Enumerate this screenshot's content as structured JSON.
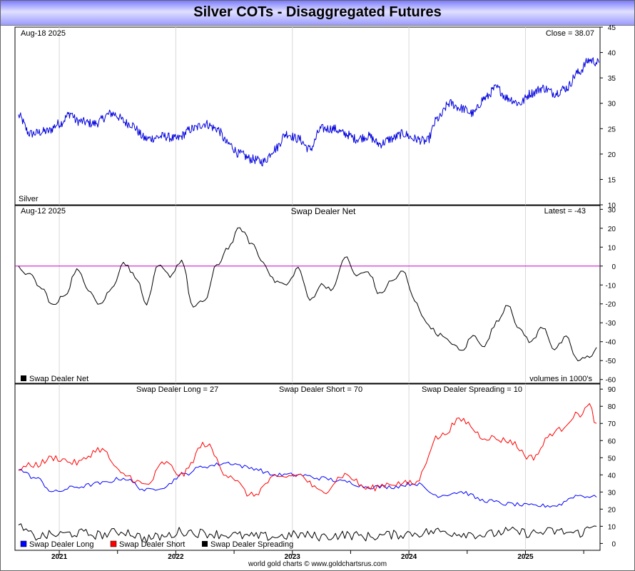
{
  "title": "Silver COTs - Disaggregated Futures",
  "footer": "world gold charts © www.goldchartsrus.com",
  "x_axis": {
    "years": [
      "2021",
      "2022",
      "2023",
      "2024",
      "2025"
    ]
  },
  "colors": {
    "price": "#0000dd",
    "net": "#000000",
    "zero": "#cc00cc",
    "long": "#0000ff",
    "short": "#ff0000",
    "spreading": "#000000"
  },
  "panels": {
    "price": {
      "date_label": "Aug-18  2025",
      "value_label": "Close = 38.07",
      "series_label": "Silver"
    },
    "net": {
      "date_label": "Aug-12  2025",
      "title": "Swap Dealer Net",
      "value_label": "Latest = -43",
      "legend": "Swap Dealer Net",
      "units_note": "volumes in 1000's"
    },
    "positions": {
      "long_label": "Swap Dealer Long = 27",
      "short_label": "Swap Dealer Short = 70",
      "spread_label": "Swap Dealer Spreading = 10",
      "legend": [
        "Swap Dealer Long",
        "Swap Dealer Short",
        "Swap Dealer Spreading"
      ]
    }
  },
  "chart_data": [
    {
      "type": "line",
      "name": "Silver",
      "x_start": "2020-09",
      "x_end": "2025-08",
      "ylim": [
        10,
        45
      ],
      "yticks": [
        10,
        15,
        20,
        25,
        30,
        35,
        40,
        45
      ],
      "anchors": [
        [
          2020.65,
          27.5
        ],
        [
          2020.75,
          24
        ],
        [
          2020.9,
          24.5
        ],
        [
          2021.0,
          26
        ],
        [
          2021.1,
          28
        ],
        [
          2021.15,
          26.5
        ],
        [
          2021.3,
          26
        ],
        [
          2021.45,
          28
        ],
        [
          2021.6,
          26
        ],
        [
          2021.75,
          23
        ],
        [
          2021.9,
          23.5
        ],
        [
          2022.0,
          23
        ],
        [
          2022.15,
          25
        ],
        [
          2022.25,
          26
        ],
        [
          2022.35,
          25
        ],
        [
          2022.45,
          22
        ],
        [
          2022.55,
          20
        ],
        [
          2022.65,
          19
        ],
        [
          2022.75,
          18.5
        ],
        [
          2022.85,
          21
        ],
        [
          2022.95,
          24
        ],
        [
          2023.05,
          23
        ],
        [
          2023.15,
          21
        ],
        [
          2023.25,
          25
        ],
        [
          2023.35,
          25
        ],
        [
          2023.45,
          24
        ],
        [
          2023.55,
          23
        ],
        [
          2023.65,
          23.5
        ],
        [
          2023.75,
          22
        ],
        [
          2023.85,
          23
        ],
        [
          2023.95,
          24
        ],
        [
          2024.05,
          23
        ],
        [
          2024.15,
          22.5
        ],
        [
          2024.25,
          27
        ],
        [
          2024.35,
          30
        ],
        [
          2024.45,
          29
        ],
        [
          2024.55,
          28
        ],
        [
          2024.65,
          31
        ],
        [
          2024.75,
          33
        ],
        [
          2024.85,
          31
        ],
        [
          2024.95,
          30
        ],
        [
          2025.05,
          32
        ],
        [
          2025.15,
          33
        ],
        [
          2025.25,
          32
        ],
        [
          2025.35,
          33
        ],
        [
          2025.45,
          36
        ],
        [
          2025.55,
          38.5
        ],
        [
          2025.63,
          38
        ]
      ],
      "last_close": 38.07
    },
    {
      "type": "line",
      "name": "Swap Dealer Net",
      "x_start": "2020-09",
      "x_end": "2025-08",
      "ylim": [
        -62,
        32
      ],
      "yticks": [
        -60,
        -50,
        -40,
        -30,
        -20,
        -10,
        0,
        10,
        20,
        30
      ],
      "hline": 0,
      "anchors": [
        [
          2020.65,
          -1
        ],
        [
          2020.75,
          -5
        ],
        [
          2020.85,
          -12
        ],
        [
          2020.95,
          -21
        ],
        [
          2021.05,
          -15
        ],
        [
          2021.15,
          -2
        ],
        [
          2021.25,
          -12
        ],
        [
          2021.35,
          -20
        ],
        [
          2021.45,
          -12
        ],
        [
          2021.55,
          2
        ],
        [
          2021.65,
          -5
        ],
        [
          2021.75,
          -20
        ],
        [
          2021.85,
          0
        ],
        [
          2021.95,
          -5
        ],
        [
          2022.05,
          3
        ],
        [
          2022.15,
          -22
        ],
        [
          2022.25,
          -18
        ],
        [
          2022.35,
          0
        ],
        [
          2022.45,
          10
        ],
        [
          2022.55,
          20
        ],
        [
          2022.65,
          12
        ],
        [
          2022.75,
          2
        ],
        [
          2022.85,
          -8
        ],
        [
          2022.95,
          -10
        ],
        [
          2023.05,
          -1
        ],
        [
          2023.15,
          -18
        ],
        [
          2023.25,
          -10
        ],
        [
          2023.35,
          -12
        ],
        [
          2023.45,
          5
        ],
        [
          2023.55,
          -5
        ],
        [
          2023.65,
          -3
        ],
        [
          2023.75,
          -15
        ],
        [
          2023.85,
          -8
        ],
        [
          2023.95,
          -3
        ],
        [
          2024.05,
          -18
        ],
        [
          2024.15,
          -30
        ],
        [
          2024.25,
          -36
        ],
        [
          2024.35,
          -40
        ],
        [
          2024.45,
          -45
        ],
        [
          2024.55,
          -37
        ],
        [
          2024.65,
          -42
        ],
        [
          2024.75,
          -30
        ],
        [
          2024.85,
          -20
        ],
        [
          2024.95,
          -34
        ],
        [
          2025.05,
          -40
        ],
        [
          2025.15,
          -32
        ],
        [
          2025.25,
          -44
        ],
        [
          2025.35,
          -38
        ],
        [
          2025.45,
          -50
        ],
        [
          2025.55,
          -48
        ],
        [
          2025.61,
          -43
        ]
      ],
      "latest": -43
    },
    {
      "type": "line",
      "name": "Swap Dealer Positions",
      "x_start": "2020-09",
      "x_end": "2025-08",
      "ylim": [
        -4,
        93
      ],
      "yticks": [
        0,
        10,
        20,
        30,
        40,
        50,
        60,
        70,
        80,
        90
      ],
      "series": [
        {
          "name": "Swap Dealer Long",
          "latest": 27,
          "anchors": [
            [
              2020.65,
              43
            ],
            [
              2020.8,
              38
            ],
            [
              2020.95,
              30
            ],
            [
              2021.15,
              33
            ],
            [
              2021.35,
              35
            ],
            [
              2021.55,
              38
            ],
            [
              2021.75,
              31
            ],
            [
              2021.9,
              33
            ],
            [
              2022.05,
              40
            ],
            [
              2022.25,
              45
            ],
            [
              2022.45,
              47
            ],
            [
              2022.65,
              44
            ],
            [
              2022.85,
              40
            ],
            [
              2023.05,
              40
            ],
            [
              2023.25,
              38
            ],
            [
              2023.45,
              36
            ],
            [
              2023.65,
              33
            ],
            [
              2023.85,
              33
            ],
            [
              2024.05,
              35
            ],
            [
              2024.25,
              28
            ],
            [
              2024.45,
              30
            ],
            [
              2024.65,
              25
            ],
            [
              2024.85,
              23
            ],
            [
              2025.05,
              22
            ],
            [
              2025.25,
              22
            ],
            [
              2025.45,
              28
            ],
            [
              2025.61,
              27
            ]
          ]
        },
        {
          "name": "Swap Dealer Short",
          "latest": 70,
          "anchors": [
            [
              2020.65,
              44
            ],
            [
              2020.8,
              46
            ],
            [
              2020.95,
              50
            ],
            [
              2021.15,
              47
            ],
            [
              2021.35,
              55
            ],
            [
              2021.55,
              40
            ],
            [
              2021.75,
              34
            ],
            [
              2021.9,
              47
            ],
            [
              2022.05,
              40
            ],
            [
              2022.25,
              58
            ],
            [
              2022.45,
              40
            ],
            [
              2022.65,
              28
            ],
            [
              2022.85,
              38
            ],
            [
              2023.05,
              40
            ],
            [
              2023.25,
              30
            ],
            [
              2023.45,
              40
            ],
            [
              2023.65,
              32
            ],
            [
              2023.85,
              35
            ],
            [
              2024.05,
              35
            ],
            [
              2024.25,
              62
            ],
            [
              2024.45,
              72
            ],
            [
              2024.65,
              62
            ],
            [
              2024.85,
              60
            ],
            [
              2025.05,
              50
            ],
            [
              2025.25,
              65
            ],
            [
              2025.45,
              75
            ],
            [
              2025.55,
              80
            ],
            [
              2025.61,
              70
            ]
          ]
        },
        {
          "name": "Swap Dealer Spreading",
          "latest": 10,
          "anchors": [
            [
              2020.65,
              9
            ],
            [
              2020.8,
              4
            ],
            [
              2020.95,
              5
            ],
            [
              2021.15,
              6
            ],
            [
              2021.35,
              5
            ],
            [
              2021.55,
              7
            ],
            [
              2021.75,
              3
            ],
            [
              2021.9,
              4
            ],
            [
              2022.05,
              7
            ],
            [
              2022.25,
              6
            ],
            [
              2022.45,
              5
            ],
            [
              2022.65,
              4
            ],
            [
              2022.85,
              4
            ],
            [
              2023.05,
              5
            ],
            [
              2023.25,
              4
            ],
            [
              2023.45,
              5
            ],
            [
              2023.65,
              4
            ],
            [
              2023.85,
              5
            ],
            [
              2024.05,
              6
            ],
            [
              2024.25,
              7
            ],
            [
              2024.45,
              6
            ],
            [
              2024.65,
              5
            ],
            [
              2024.85,
              7
            ],
            [
              2025.05,
              6
            ],
            [
              2025.25,
              7
            ],
            [
              2025.45,
              6
            ],
            [
              2025.61,
              10
            ]
          ]
        }
      ]
    }
  ]
}
